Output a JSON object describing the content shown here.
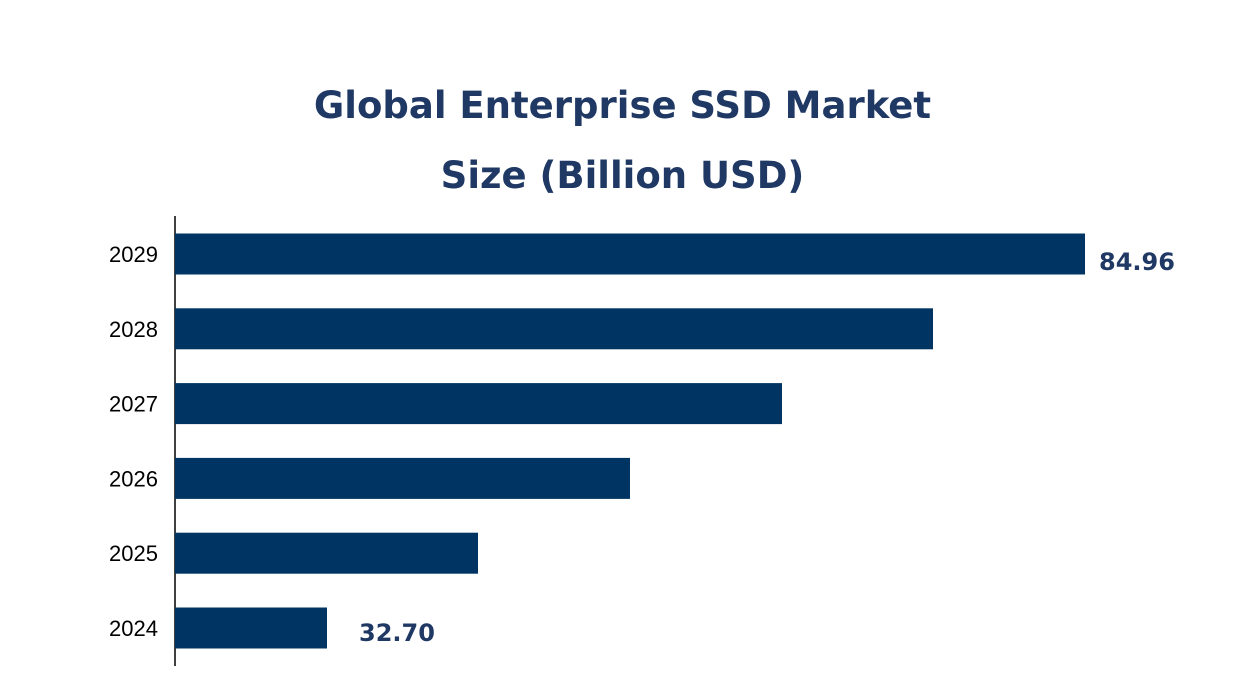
{
  "chart_data": {
    "type": "bar",
    "orientation": "horizontal",
    "title": [
      "Global Enterprise SSD Market",
      "Size (Billion USD)"
    ],
    "categories": [
      "2029",
      "2028",
      "2027",
      "2026",
      "2025",
      "2024"
    ],
    "values": [
      84.96,
      74.48,
      64.07,
      53.59,
      43.11,
      32.7
    ],
    "data_labels": {
      "2029": "84.96",
      "2024": "32.70"
    },
    "xlim": [
      22.22,
      84.96
    ],
    "xlabel": "",
    "ylabel": "",
    "grid": false,
    "colors": {
      "bar": "#003462",
      "title": "#1f3864",
      "label": "#1f3864"
    }
  }
}
